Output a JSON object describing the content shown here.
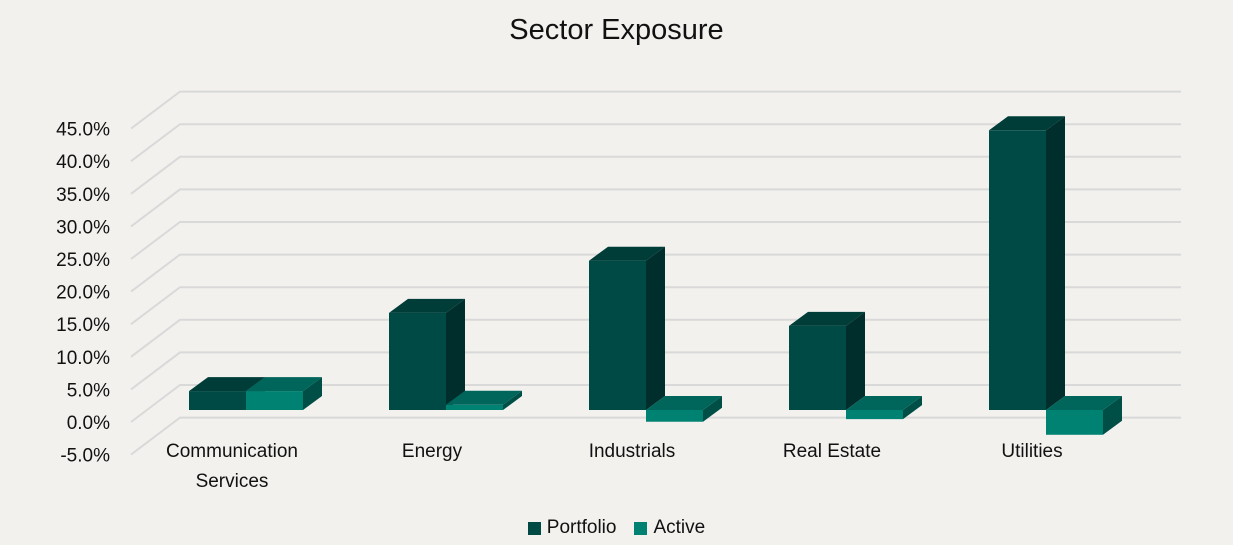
{
  "chart_data": {
    "type": "bar",
    "subtype": "3d-clustered-column",
    "title": "Sector Exposure",
    "xlabel": "",
    "ylabel": "",
    "categories": [
      "Communication Services",
      "Energy",
      "Industrials",
      "Real Estate",
      "Utilities"
    ],
    "category_label_lines": [
      [
        "Communication",
        "Services"
      ],
      [
        "Energy"
      ],
      [
        "Industrials"
      ],
      [
        "Real Estate"
      ],
      [
        "Utilities"
      ]
    ],
    "series": [
      {
        "name": "Portfolio",
        "values": [
          2.9,
          14.9,
          22.9,
          12.9,
          42.9
        ],
        "color": "#004a45"
      },
      {
        "name": "Active",
        "values": [
          2.9,
          0.8,
          -1.8,
          -1.4,
          -3.8
        ],
        "color": "#008272"
      }
    ],
    "yticks": [
      "45.0%",
      "40.0%",
      "35.0%",
      "30.0%",
      "25.0%",
      "20.0%",
      "15.0%",
      "10.0%",
      "5.0%",
      "0.0%",
      "-5.0%"
    ],
    "ylim": [
      -5,
      45
    ],
    "grid": true,
    "legend_position": "bottom"
  },
  "colors": {
    "background": "#f2f1ee",
    "grid": "#d9d9d9",
    "portfolio_front": "#004a45",
    "portfolio_top": "#003d38",
    "portfolio_side": "#002e2c",
    "active_front": "#008272",
    "active_top": "#00655a",
    "active_side": "#004f47"
  },
  "legend": {
    "items": [
      {
        "label": "Portfolio",
        "color": "#004a45"
      },
      {
        "label": "Active",
        "color": "#008272"
      }
    ]
  }
}
